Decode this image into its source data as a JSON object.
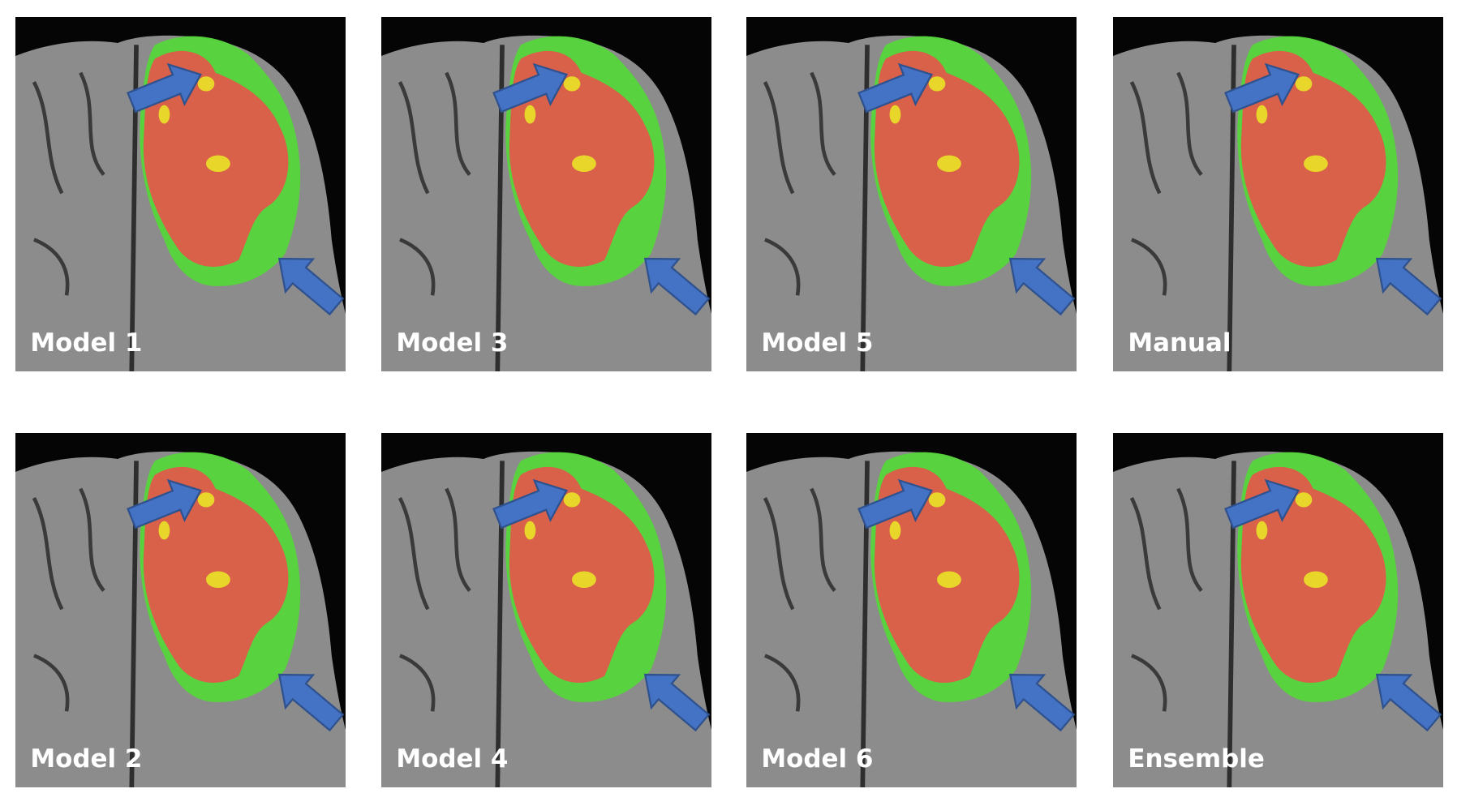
{
  "panels": [
    {
      "label": "Model 1"
    },
    {
      "label": "Model 3"
    },
    {
      "label": "Model 5"
    },
    {
      "label": "Manual"
    },
    {
      "label": "Model 2"
    },
    {
      "label": "Model 4"
    },
    {
      "label": "Model 6"
    },
    {
      "label": "Ensemble"
    }
  ]
}
